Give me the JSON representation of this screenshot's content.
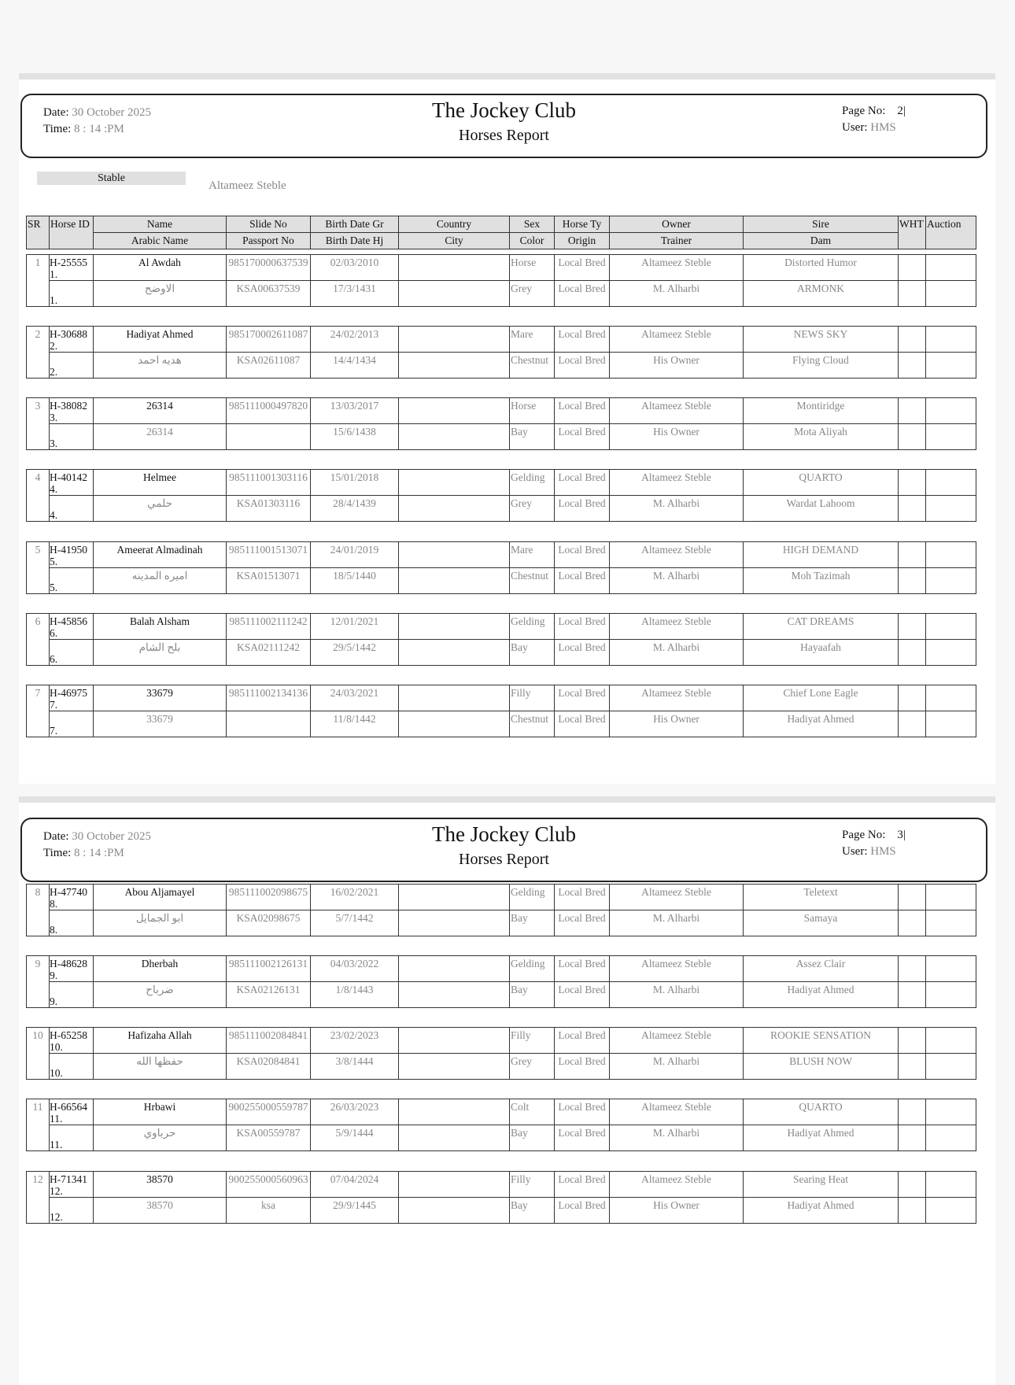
{
  "pages": [
    {
      "date_label": "Date:",
      "date": "30 October 2025",
      "time_label": "Time:",
      "time": "8 : 14 :PM",
      "title": "The Jockey Club",
      "subtitle": "Horses Report",
      "page_label": "Page No:",
      "page_no": "2|",
      "user_label": "User:",
      "user": "HMS"
    },
    {
      "date_label": "Date:",
      "date": "30 October 2025",
      "time_label": "Time:",
      "time": "8 : 14 :PM",
      "title": "The Jockey Club",
      "subtitle": "Horses Report",
      "page_label": "Page No:",
      "page_no": "3|",
      "user_label": "User:",
      "user": "HMS"
    }
  ],
  "stable": {
    "label": "Stable",
    "value": "Altameez Steble"
  },
  "columns": {
    "row1": [
      "SR",
      "Horse ID",
      "Name",
      "Slide No",
      "Birth Date Gr",
      "Country",
      "Sex",
      "Horse Ty",
      "Owner",
      "Sire",
      "WHT",
      "Auction"
    ],
    "row2": [
      "Arabic Name",
      "Passport No",
      "Birth Date Hj",
      "City",
      "Color",
      "Origin",
      "Trainer",
      "Dam"
    ]
  },
  "records": [
    {
      "sr": "1",
      "id": "H-25555",
      "idx": "1.",
      "name": "Al Awdah",
      "arabic": "الاوضح",
      "slide": "985170000637539",
      "passport": "KSA00637539",
      "bdg": "02/03/2010",
      "bdh": "17/3/1431",
      "country": "",
      "city": "",
      "sex": "Horse",
      "color": "Grey",
      "type": "Local Bred",
      "origin": "Local Bred",
      "owner": "Altameez Steble",
      "trainer": "M. Alharbi",
      "sire": "Distorted Humor",
      "dam": "ARMONK"
    },
    {
      "sr": "2",
      "id": "H-30688",
      "idx": "2.",
      "name": "Hadiyat Ahmed",
      "arabic": "هديه احمد",
      "slide": "985170002611087",
      "passport": "KSA02611087",
      "bdg": "24/02/2013",
      "bdh": "14/4/1434",
      "country": "",
      "city": "",
      "sex": "Mare",
      "color": "Chestnut",
      "type": "Local Bred",
      "origin": "Local Bred",
      "owner": "Altameez Steble",
      "trainer": "His Owner",
      "sire": "NEWS SKY",
      "dam": "Flying Cloud"
    },
    {
      "sr": "3",
      "id": "H-38082",
      "idx": "3.",
      "name": "26314",
      "arabic": "26314",
      "slide": "985111000497820",
      "passport": "",
      "bdg": "13/03/2017",
      "bdh": "15/6/1438",
      "country": "",
      "city": "",
      "sex": "Horse",
      "color": "Bay",
      "type": "Local Bred",
      "origin": "Local Bred",
      "owner": "Altameez Steble",
      "trainer": "His Owner",
      "sire": "Montiridge",
      "dam": "Mota Aliyah"
    },
    {
      "sr": "4",
      "id": "H-40142",
      "idx": "4.",
      "name": "Helmee",
      "arabic": "حلمي",
      "slide": "985111001303116",
      "passport": "KSA01303116",
      "bdg": "15/01/2018",
      "bdh": "28/4/1439",
      "country": "",
      "city": "",
      "sex": "Gelding",
      "color": "Grey",
      "type": "Local Bred",
      "origin": "Local Bred",
      "owner": "Altameez Steble",
      "trainer": "M. Alharbi",
      "sire": "QUARTO",
      "dam": "Wardat Lahoom"
    },
    {
      "sr": "5",
      "id": "H-41950",
      "idx": "5.",
      "name": "Ameerat Almadinah",
      "arabic": "اميره المدينه",
      "slide": "985111001513071",
      "passport": "KSA01513071",
      "bdg": "24/01/2019",
      "bdh": "18/5/1440",
      "country": "",
      "city": "",
      "sex": "Mare",
      "color": "Chestnut",
      "type": "Local Bred",
      "origin": "Local Bred",
      "owner": "Altameez Steble",
      "trainer": "M. Alharbi",
      "sire": "HIGH DEMAND",
      "dam": "Moh Tazimah"
    },
    {
      "sr": "6",
      "id": "H-45856",
      "idx": "6.",
      "name": "Balah Alsham",
      "arabic": "بلح الشام",
      "slide": "985111002111242",
      "passport": "KSA02111242",
      "bdg": "12/01/2021",
      "bdh": "29/5/1442",
      "country": "",
      "city": "",
      "sex": "Gelding",
      "color": "Bay",
      "type": "Local Bred",
      "origin": "Local Bred",
      "owner": "Altameez Steble",
      "trainer": "M. Alharbi",
      "sire": "CAT DREAMS",
      "dam": "Hayaafah"
    },
    {
      "sr": "7",
      "id": "H-46975",
      "idx": "7.",
      "name": "33679",
      "arabic": "33679",
      "slide": "985111002134136",
      "passport": "",
      "bdg": "24/03/2021",
      "bdh": "11/8/1442",
      "country": "",
      "city": "",
      "sex": "Filly",
      "color": "Chestnut",
      "type": "Local Bred",
      "origin": "Local Bred",
      "owner": "Altameez Steble",
      "trainer": "His Owner",
      "sire": "Chief Lone Eagle",
      "dam": "Hadiyat Ahmed"
    },
    {
      "sr": "8",
      "id": "H-47740",
      "idx": "8.",
      "name": "Abou Aljamayel",
      "arabic": "ابو الجمايل",
      "slide": "985111002098675",
      "passport": "KSA02098675",
      "bdg": "16/02/2021",
      "bdh": "5/7/1442",
      "country": "",
      "city": "",
      "sex": "Gelding",
      "color": "Bay",
      "type": "Local Bred",
      "origin": "Local Bred",
      "owner": "Altameez Steble",
      "trainer": "M. Alharbi",
      "sire": "Teletext",
      "dam": "Samaya"
    },
    {
      "sr": "9",
      "id": "H-48628",
      "idx": "9.",
      "name": "Dherbah",
      "arabic": "ضرباح",
      "slide": "985111002126131",
      "passport": "KSA02126131",
      "bdg": "04/03/2022",
      "bdh": "1/8/1443",
      "country": "",
      "city": "",
      "sex": "Gelding",
      "color": "Bay",
      "type": "Local Bred",
      "origin": "Local Bred",
      "owner": "Altameez Steble",
      "trainer": "M. Alharbi",
      "sire": "Assez Clair",
      "dam": "Hadiyat Ahmed"
    },
    {
      "sr": "10",
      "id": "H-65258",
      "idx": "10.",
      "name": "Hafizaha Allah",
      "arabic": "حفظها الله",
      "slide": "985111002084841",
      "passport": "KSA02084841",
      "bdg": "23/02/2023",
      "bdh": "3/8/1444",
      "country": "",
      "city": "",
      "sex": "Filly",
      "color": "Grey",
      "type": "Local Bred",
      "origin": "Local Bred",
      "owner": "Altameez Steble",
      "trainer": "M. Alharbi",
      "sire": "ROOKIE SENSATION",
      "dam": "BLUSH NOW"
    },
    {
      "sr": "11",
      "id": "H-66564",
      "idx": "11.",
      "name": "Hrbawi",
      "arabic": "حرباوي",
      "slide": "900255000559787",
      "passport": "KSA00559787",
      "bdg": "26/03/2023",
      "bdh": "5/9/1444",
      "country": "",
      "city": "",
      "sex": "Colt",
      "color": "Bay",
      "type": "Local Bred",
      "origin": "Local Bred",
      "owner": "Altameez Steble",
      "trainer": "M. Alharbi",
      "sire": "QUARTO",
      "dam": "Hadiyat Ahmed"
    },
    {
      "sr": "12",
      "id": "H-71341",
      "idx": "12.",
      "name": "38570",
      "arabic": "38570",
      "slide": "900255000560963",
      "passport": "ksa",
      "bdg": "07/04/2024",
      "bdh": "29/9/1445",
      "country": "",
      "city": "",
      "sex": "Filly",
      "color": "Bay",
      "type": "Local Bred",
      "origin": "Local Bred",
      "owner": "Altameez Steble",
      "trainer": "His Owner",
      "sire": "Searing Heat",
      "dam": "Hadiyat Ahmed"
    }
  ]
}
